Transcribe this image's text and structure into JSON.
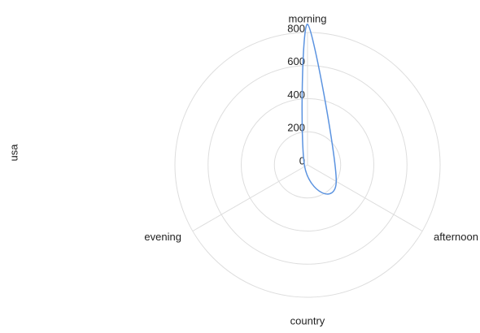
{
  "chart_data": {
    "type": "radar",
    "categories": [
      "morning",
      "afternoon",
      "evening"
    ],
    "series": [
      {
        "name": "usa",
        "color": "#5b93e0",
        "values": [
          850,
          200,
          20
        ]
      }
    ],
    "rlim": [
      0,
      800
    ],
    "rticks": [
      0,
      200,
      400,
      600,
      800
    ],
    "y_label": "usa",
    "x_label": "country",
    "grid": true
  }
}
